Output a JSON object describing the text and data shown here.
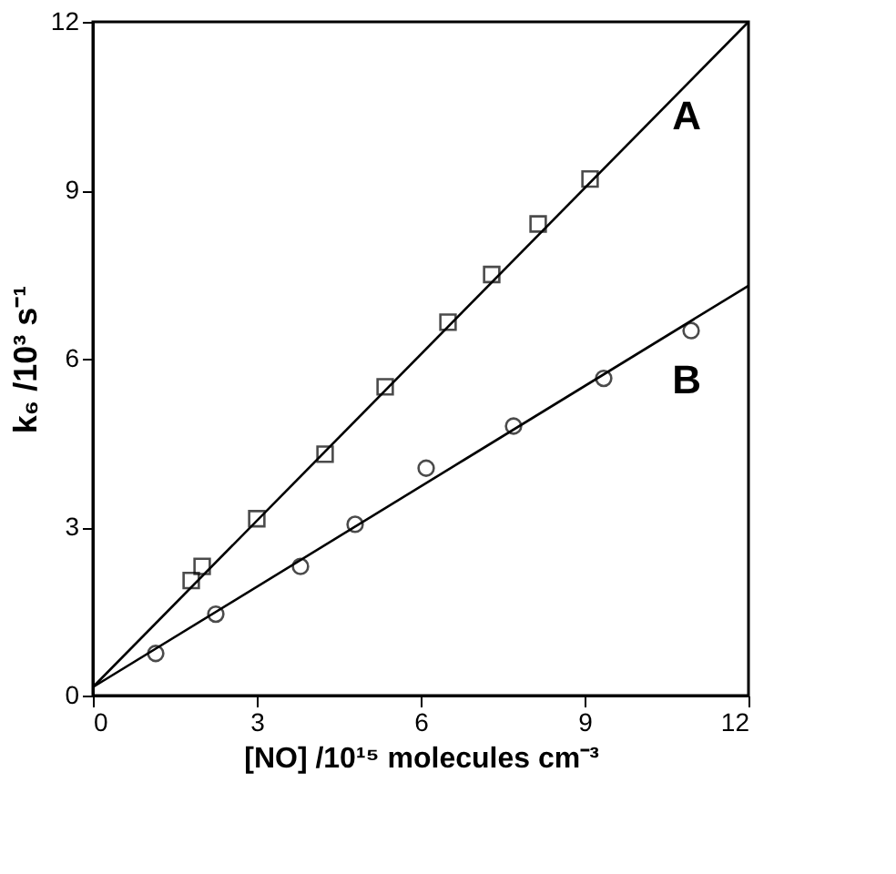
{
  "chart_data": {
    "type": "scatter",
    "xlabel": "[NO] /10¹⁵ molecules cm⁻³",
    "ylabel": "k₆ /10³ s⁻¹",
    "xlim": [
      0,
      12
    ],
    "ylim": [
      0,
      12
    ],
    "xticks": [
      0,
      3,
      6,
      9,
      12
    ],
    "yticks": [
      0,
      3,
      6,
      9,
      12
    ],
    "grid": false,
    "series": [
      {
        "marker": "square",
        "color": "#000000",
        "x": [
          1.8,
          2.0,
          3.0,
          4.25,
          5.35,
          6.5,
          7.3,
          8.15,
          9.1
        ],
        "values": [
          2.05,
          2.3,
          3.15,
          4.3,
          5.5,
          6.65,
          7.5,
          8.4,
          9.2
        ]
      },
      {
        "marker": "circle",
        "color": "#000000",
        "x": [
          1.15,
          2.25,
          3.8,
          4.8,
          6.1,
          7.7,
          9.35,
          10.95
        ],
        "values": [
          0.75,
          1.45,
          2.3,
          3.05,
          4.05,
          4.8,
          5.65,
          6.5
        ]
      },
      {
        "type": "line",
        "marker": "none",
        "color": "#000000",
        "x": [
          0,
          12
        ],
        "values": [
          0.15,
          12
        ]
      },
      {
        "type": "line",
        "marker": "none",
        "color": "#000000",
        "x": [
          0,
          12
        ],
        "values": [
          0.15,
          7.3
        ]
      }
    ],
    "annotations": [
      "A",
      "B"
    ]
  }
}
